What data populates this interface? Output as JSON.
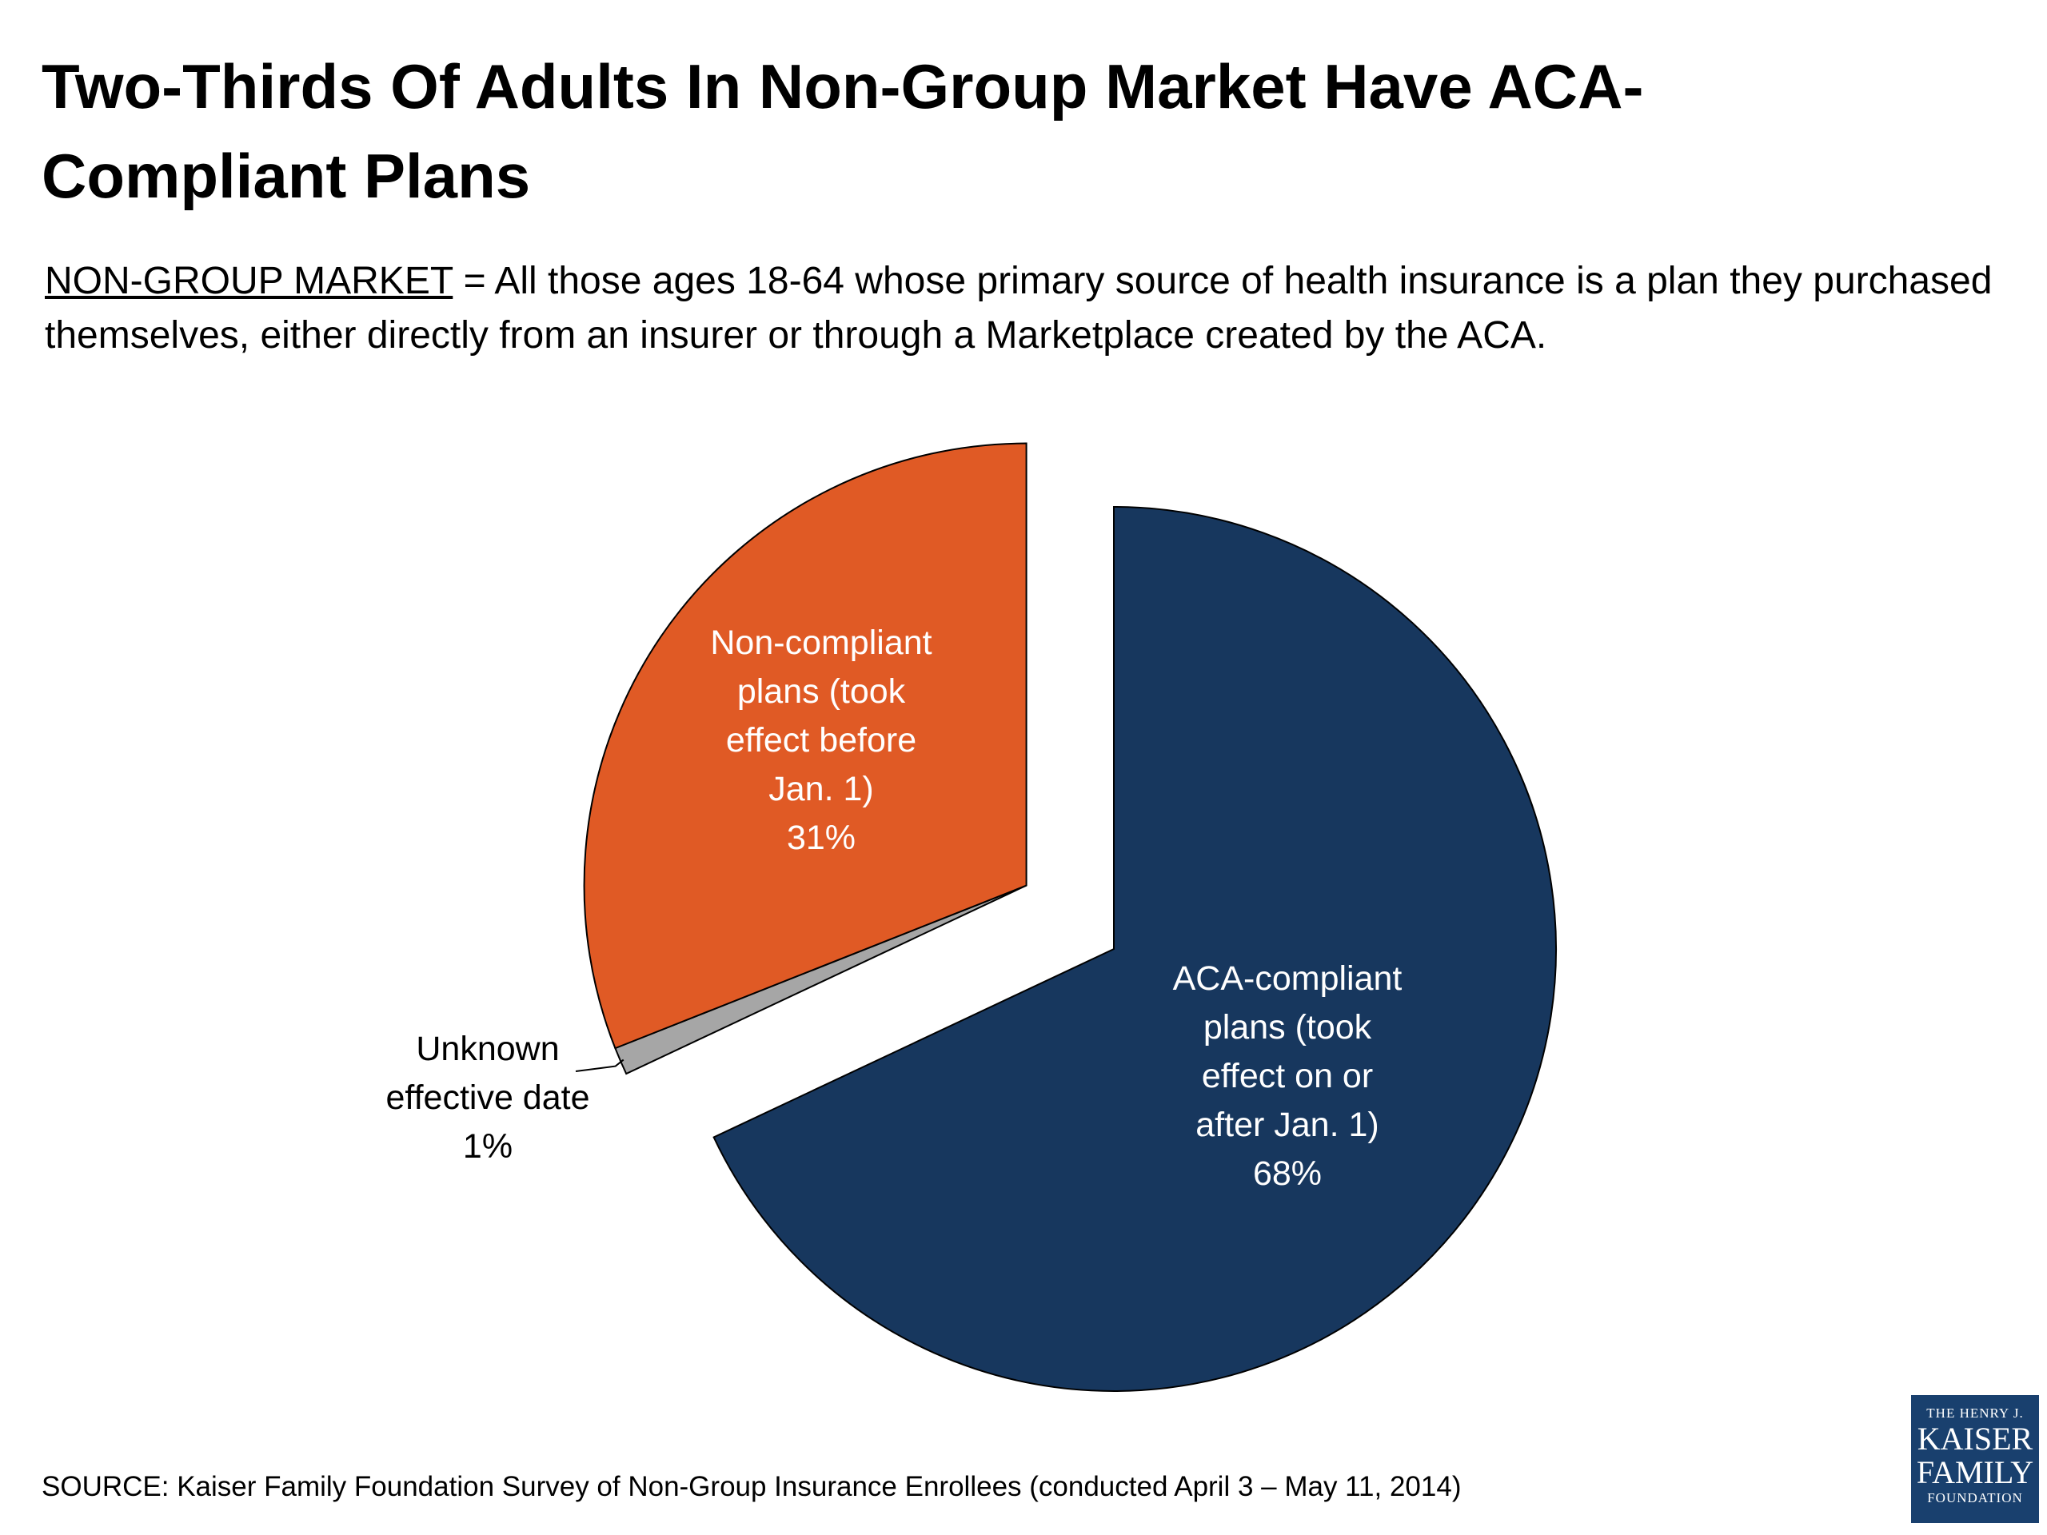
{
  "title": "Two-Thirds Of Adults In Non-Group Market Have ACA-Compliant Plans",
  "definition": {
    "term": "NON-GROUP MARKET",
    "text": " = All those ages 18-64 whose primary source of health insurance is a plan they purchased themselves, either directly from an insurer or through a Marketplace created by the ACA."
  },
  "chart_data": {
    "type": "pie",
    "title": "",
    "slices": [
      {
        "label_lines": [
          "ACA-compliant",
          "plans (took",
          "effect on or",
          "after Jan. 1)"
        ],
        "value": 68,
        "value_label": "68%",
        "color": "#17375e",
        "text_color": "#ffffff",
        "exploded": false
      },
      {
        "label_lines": [
          "Unknown",
          "effective date"
        ],
        "value": 1,
        "value_label": "1%",
        "color": "#a6a6a6",
        "text_color": "#000000",
        "exploded": true
      },
      {
        "label_lines": [
          "Non-compliant",
          "plans (took",
          "effect before",
          "Jan. 1)"
        ],
        "value": 31,
        "value_label": "31%",
        "color": "#e05a25",
        "text_color": "#ffffff",
        "exploded": true
      }
    ]
  },
  "source": "SOURCE: Kaiser Family Foundation Survey of Non-Group Insurance Enrollees  (conducted April 3 – May 11, 2014)",
  "logo": {
    "line1": "THE HENRY J.",
    "line2": "KAISER",
    "line3": "FAMILY",
    "line4": "FOUNDATION"
  }
}
